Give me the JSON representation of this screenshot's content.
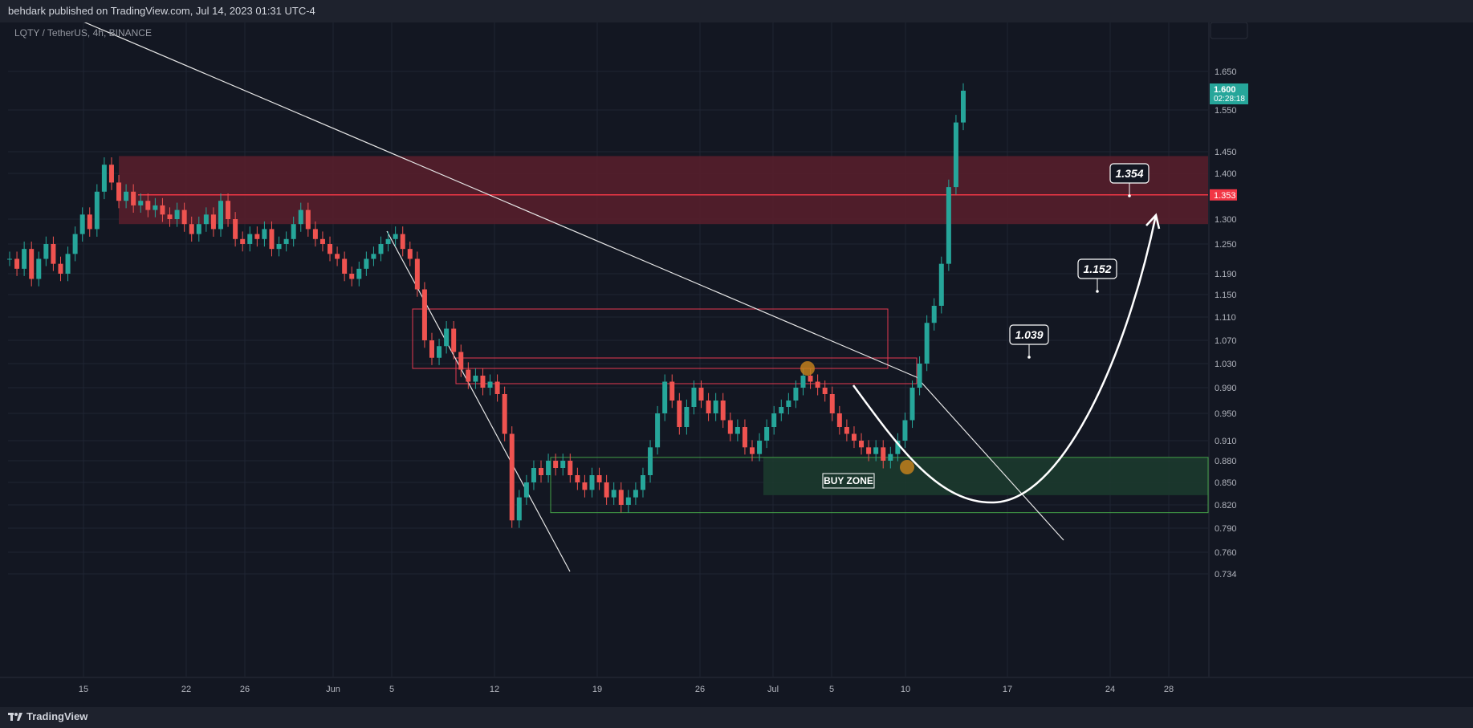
{
  "header": {
    "published": "behdark published on TradingView.com, Jul 14, 2023 01:31 UTC-4"
  },
  "symbol_label": "LQTY / TetherUS, 4h, BINANCE",
  "footer": {
    "brand": "TradingView"
  },
  "colors": {
    "bg": "#131722",
    "up": "#26a69a",
    "down": "#ef5350",
    "resistance_zone": "#5a1f2b",
    "buy_zone": "#1c3a2e",
    "price_badge": "#26a69a",
    "level_badge": "#f23645"
  },
  "chart_data": {
    "type": "candlestick",
    "title": "",
    "x_ticks": [
      "15",
      "22",
      "26",
      "Jun",
      "5",
      "12",
      "19",
      "26",
      "Jul",
      "5",
      "10",
      "17",
      "24",
      "28"
    ],
    "y_ticks": [
      "1.650",
      "1.550",
      "1.450",
      "1.400",
      "1.300",
      "1.250",
      "1.190",
      "1.150",
      "1.110",
      "1.070",
      "1.030",
      "0.990",
      "0.950",
      "0.910",
      "0.880",
      "0.850",
      "0.820",
      "0.790",
      "0.760",
      "0.734"
    ],
    "current_price": {
      "value": "1.600",
      "countdown": "02:28:18"
    },
    "level_line": {
      "value": "1.353"
    },
    "zones": [
      {
        "name": "resistance",
        "top": 1.44,
        "bottom": 1.29
      },
      {
        "name": "buy-zone",
        "top": 0.885,
        "bottom": 0.833,
        "label": "BUY ZONE"
      }
    ],
    "targets": [
      {
        "value": "1.354"
      },
      {
        "value": "1.152"
      },
      {
        "value": "1.039"
      }
    ],
    "price_path": [
      1.22,
      1.2,
      1.24,
      1.18,
      1.22,
      1.25,
      1.21,
      1.19,
      1.23,
      1.27,
      1.31,
      1.28,
      1.36,
      1.42,
      1.38,
      1.34,
      1.36,
      1.33,
      1.34,
      1.32,
      1.33,
      1.31,
      1.3,
      1.32,
      1.29,
      1.27,
      1.29,
      1.31,
      1.28,
      1.34,
      1.3,
      1.26,
      1.25,
      1.27,
      1.26,
      1.28,
      1.24,
      1.25,
      1.26,
      1.29,
      1.32,
      1.28,
      1.26,
      1.25,
      1.23,
      1.22,
      1.19,
      1.18,
      1.2,
      1.22,
      1.23,
      1.25,
      1.26,
      1.27,
      1.24,
      1.22,
      1.16,
      1.07,
      1.04,
      1.06,
      1.09,
      1.05,
      1.02,
      1.0,
      1.01,
      0.99,
      1.0,
      0.98,
      0.92,
      0.8,
      0.83,
      0.85,
      0.87,
      0.86,
      0.88,
      0.87,
      0.88,
      0.86,
      0.85,
      0.84,
      0.86,
      0.85,
      0.83,
      0.84,
      0.82,
      0.83,
      0.84,
      0.86,
      0.9,
      0.95,
      1.0,
      0.97,
      0.93,
      0.96,
      0.99,
      0.97,
      0.95,
      0.97,
      0.94,
      0.92,
      0.93,
      0.9,
      0.89,
      0.91,
      0.93,
      0.95,
      0.96,
      0.97,
      0.99,
      1.01,
      1.0,
      0.99,
      0.98,
      0.95,
      0.93,
      0.92,
      0.91,
      0.9,
      0.89,
      0.9,
      0.88,
      0.89,
      0.91,
      0.94,
      0.99,
      1.03,
      1.1,
      1.13,
      1.21,
      1.37,
      1.52,
      1.6
    ]
  }
}
